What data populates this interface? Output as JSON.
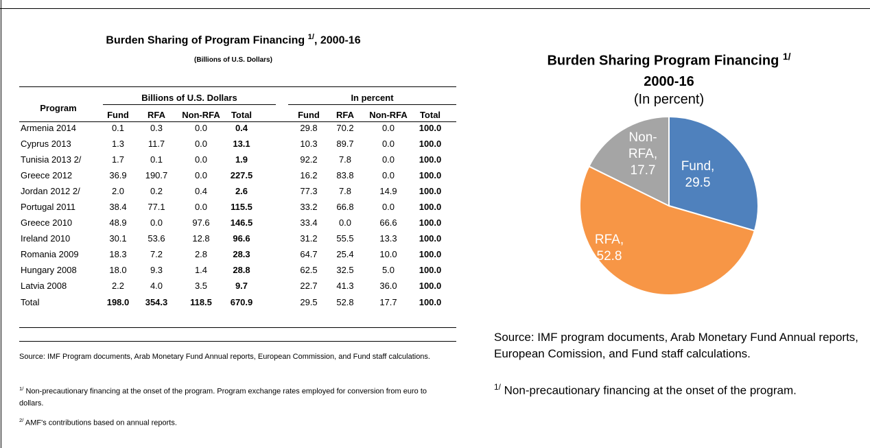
{
  "table": {
    "title": "Burden Sharing of Program Financing",
    "title_sup": "1/",
    "title_suffix": ", 2000-16",
    "subtitle": "(Billions of U.S. Dollars)",
    "program_header": "Program",
    "group_headers": [
      "Billions of U.S. Dollars",
      "In percent"
    ],
    "columns": [
      "Fund",
      "RFA",
      "Non-RFA",
      "Total",
      "Fund",
      "RFA",
      "Non-RFA",
      "Total"
    ],
    "rows": [
      [
        "Armenia 2014",
        "0.1",
        "0.3",
        "0.0",
        "0.4",
        "29.8",
        "70.2",
        "0.0",
        "100.0"
      ],
      [
        "Cyprus 2013",
        "1.3",
        "11.7",
        "0.0",
        "13.1",
        "10.3",
        "89.7",
        "0.0",
        "100.0"
      ],
      [
        "Tunisia 2013 2/",
        "1.7",
        "0.1",
        "0.0",
        "1.9",
        "92.2",
        "7.8",
        "0.0",
        "100.0"
      ],
      [
        "Greece 2012",
        "36.9",
        "190.7",
        "0.0",
        "227.5",
        "16.2",
        "83.8",
        "0.0",
        "100.0"
      ],
      [
        "Jordan 2012 2/",
        "2.0",
        "0.2",
        "0.4",
        "2.6",
        "77.3",
        "7.8",
        "14.9",
        "100.0"
      ],
      [
        "Portugal 2011",
        "38.4",
        "77.1",
        "0.0",
        "115.5",
        "33.2",
        "66.8",
        "0.0",
        "100.0"
      ],
      [
        "Greece 2010",
        "48.9",
        "0.0",
        "97.6",
        "146.5",
        "33.4",
        "0.0",
        "66.6",
        "100.0"
      ],
      [
        "Ireland 2010",
        "30.1",
        "53.6",
        "12.8",
        "96.6",
        "31.2",
        "55.5",
        "13.3",
        "100.0"
      ],
      [
        "Romania 2009",
        "18.3",
        "7.2",
        "2.8",
        "28.3",
        "64.7",
        "25.4",
        "10.0",
        "100.0"
      ],
      [
        "Hungary 2008",
        "18.0",
        "9.3",
        "1.4",
        "28.8",
        "62.5",
        "32.5",
        "5.0",
        "100.0"
      ],
      [
        "Latvia 2008",
        "2.2",
        "4.0",
        "3.5",
        "9.7",
        "22.7",
        "41.3",
        "36.0",
        "100.0"
      ],
      [
        "Total",
        "198.0",
        "354.3",
        "118.5",
        "670.9",
        "29.5",
        "52.8",
        "17.7",
        "100.0"
      ]
    ],
    "source": "Source: IMF Program documents, Arab Monetary Fund Annual reports, European Commission, and Fund staff calculations.",
    "notes": [
      {
        "sup": "1/",
        "text": " Non-precautionary financing at the onset of the program. Program exchange rates employed for conversion from euro to dollars."
      },
      {
        "sup": "2/",
        "text": " AMF's contributions based on annual reports."
      }
    ]
  },
  "chart_data": {
    "type": "pie",
    "title": "Burden Sharing Program Financing",
    "title_sup": "1/",
    "title_line2": "2000-16",
    "subtitle": "(In percent)",
    "values": [
      29.5,
      52.8,
      17.7
    ],
    "value_labels": [
      "Fund, 29.5",
      "RFA, 52.8",
      "Non-RFA, 17.7"
    ],
    "colors": [
      "#4f81bd",
      "#f79646",
      "#a5a5a5"
    ],
    "source": "Source: IMF program documents, Arab Monetary Fund Annual reports, European Comission, and Fund staff calculations.",
    "note_sup": "1/",
    "note": " Non-precautionary financing at the onset of the program."
  }
}
